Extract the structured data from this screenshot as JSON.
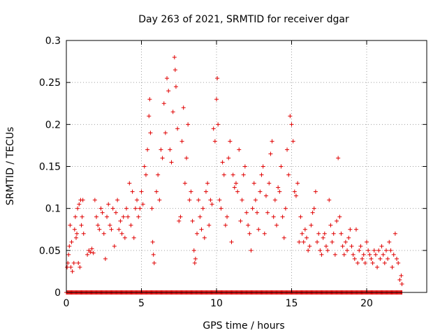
{
  "chart_data": {
    "type": "scatter",
    "title": "Day 263 of 2021, SRMTID for receiver dgar",
    "xlabel": "GPS time / hours",
    "ylabel": "SRMTID / TECUs",
    "xlim": [
      0,
      24
    ],
    "ylim": [
      0,
      0.3
    ],
    "grid": true,
    "marker": "+",
    "color": "#e00000",
    "x_ticks": [
      0,
      5,
      10,
      15,
      20
    ],
    "x_tick_labels": [
      "0",
      "5",
      "10",
      "15",
      "20"
    ],
    "y_ticks": [
      0,
      0.05,
      0.1,
      0.15,
      0.2,
      0.25,
      0.3
    ],
    "y_tick_labels": [
      "0",
      "0.05",
      "0.1",
      "0.15",
      "0.2",
      "0.25",
      "0.3"
    ],
    "series": [
      {
        "name": "SRMTID",
        "points": [
          [
            0.05,
            0.03
          ],
          [
            0.1,
            0.035
          ],
          [
            0.15,
            0.045
          ],
          [
            0.2,
            0.055
          ],
          [
            0.25,
            0.08
          ],
          [
            0.3,
            0.03
          ],
          [
            0.35,
            0.06
          ],
          [
            0.4,
            0.025
          ],
          [
            0.5,
            0.035
          ],
          [
            0.55,
            0.075
          ],
          [
            0.6,
            0.09
          ],
          [
            0.65,
            0.065
          ],
          [
            0.7,
            0.07
          ],
          [
            0.75,
            0.1
          ],
          [
            0.8,
            0.035
          ],
          [
            0.85,
            0.105
          ],
          [
            0.9,
            0.03
          ],
          [
            0.95,
            0.11
          ],
          [
            1.0,
            0.08
          ],
          [
            1.05,
            0.09
          ],
          [
            1.1,
            0.11
          ],
          [
            1.15,
            0.07
          ],
          [
            1.4,
            0.045
          ],
          [
            1.5,
            0.05
          ],
          [
            1.6,
            0.048
          ],
          [
            1.7,
            0.052
          ],
          [
            1.8,
            0.047
          ],
          [
            1.9,
            0.11
          ],
          [
            2.0,
            0.09
          ],
          [
            2.1,
            0.08
          ],
          [
            2.2,
            0.075
          ],
          [
            2.3,
            0.1
          ],
          [
            2.4,
            0.095
          ],
          [
            2.5,
            0.07
          ],
          [
            2.6,
            0.04
          ],
          [
            2.7,
            0.09
          ],
          [
            2.8,
            0.105
          ],
          [
            2.9,
            0.08
          ],
          [
            3.0,
            0.075
          ],
          [
            3.1,
            0.1
          ],
          [
            3.2,
            0.055
          ],
          [
            3.3,
            0.095
          ],
          [
            3.4,
            0.11
          ],
          [
            3.5,
            0.075
          ],
          [
            3.6,
            0.085
          ],
          [
            3.7,
            0.07
          ],
          [
            3.8,
            0.09
          ],
          [
            3.9,
            0.065
          ],
          [
            4.0,
            0.1
          ],
          [
            4.1,
            0.09
          ],
          [
            4.2,
            0.13
          ],
          [
            4.3,
            0.08
          ],
          [
            4.4,
            0.12
          ],
          [
            4.5,
            0.065
          ],
          [
            4.6,
            0.1
          ],
          [
            4.7,
            0.11
          ],
          [
            4.8,
            0.09
          ],
          [
            4.9,
            0.1
          ],
          [
            5.0,
            0.12
          ],
          [
            5.1,
            0.105
          ],
          [
            5.2,
            0.15
          ],
          [
            5.3,
            0.14
          ],
          [
            5.4,
            0.17
          ],
          [
            5.5,
            0.21
          ],
          [
            5.55,
            0.23
          ],
          [
            5.6,
            0.19
          ],
          [
            5.7,
            0.1
          ],
          [
            5.75,
            0.06
          ],
          [
            5.8,
            0.045
          ],
          [
            5.85,
            0.035
          ],
          [
            6.0,
            0.12
          ],
          [
            6.1,
            0.14
          ],
          [
            6.2,
            0.11
          ],
          [
            6.3,
            0.17
          ],
          [
            6.4,
            0.16
          ],
          [
            6.5,
            0.225
          ],
          [
            6.6,
            0.19
          ],
          [
            6.7,
            0.255
          ],
          [
            6.8,
            0.24
          ],
          [
            6.9,
            0.17
          ],
          [
            7.0,
            0.155
          ],
          [
            7.1,
            0.215
          ],
          [
            7.2,
            0.28
          ],
          [
            7.25,
            0.265
          ],
          [
            7.3,
            0.245
          ],
          [
            7.4,
            0.195
          ],
          [
            7.5,
            0.085
          ],
          [
            7.6,
            0.09
          ],
          [
            7.7,
            0.18
          ],
          [
            7.8,
            0.22
          ],
          [
            7.9,
            0.13
          ],
          [
            8.0,
            0.16
          ],
          [
            8.1,
            0.2
          ],
          [
            8.2,
            0.11
          ],
          [
            8.3,
            0.12
          ],
          [
            8.4,
            0.085
          ],
          [
            8.5,
            0.05
          ],
          [
            8.55,
            0.035
          ],
          [
            8.6,
            0.04
          ],
          [
            8.7,
            0.07
          ],
          [
            8.8,
            0.11
          ],
          [
            8.9,
            0.09
          ],
          [
            9.0,
            0.075
          ],
          [
            9.1,
            0.1
          ],
          [
            9.2,
            0.065
          ],
          [
            9.3,
            0.12
          ],
          [
            9.4,
            0.13
          ],
          [
            9.5,
            0.08
          ],
          [
            9.6,
            0.11
          ],
          [
            9.7,
            0.105
          ],
          [
            9.8,
            0.195
          ],
          [
            9.9,
            0.18
          ],
          [
            10.0,
            0.23
          ],
          [
            10.05,
            0.255
          ],
          [
            10.1,
            0.2
          ],
          [
            10.2,
            0.11
          ],
          [
            10.3,
            0.1
          ],
          [
            10.4,
            0.155
          ],
          [
            10.5,
            0.14
          ],
          [
            10.6,
            0.08
          ],
          [
            10.7,
            0.09
          ],
          [
            10.8,
            0.16
          ],
          [
            10.9,
            0.18
          ],
          [
            11.0,
            0.06
          ],
          [
            11.1,
            0.14
          ],
          [
            11.2,
            0.125
          ],
          [
            11.3,
            0.13
          ],
          [
            11.4,
            0.12
          ],
          [
            11.5,
            0.17
          ],
          [
            11.6,
            0.085
          ],
          [
            11.7,
            0.11
          ],
          [
            11.8,
            0.14
          ],
          [
            11.9,
            0.15
          ],
          [
            12.0,
            0.095
          ],
          [
            12.1,
            0.08
          ],
          [
            12.2,
            0.07
          ],
          [
            12.3,
            0.05
          ],
          [
            12.4,
            0.1
          ],
          [
            12.5,
            0.13
          ],
          [
            12.6,
            0.11
          ],
          [
            12.7,
            0.095
          ],
          [
            12.8,
            0.075
          ],
          [
            12.9,
            0.12
          ],
          [
            13.0,
            0.14
          ],
          [
            13.1,
            0.15
          ],
          [
            13.2,
            0.07
          ],
          [
            13.3,
            0.115
          ],
          [
            13.4,
            0.095
          ],
          [
            13.5,
            0.13
          ],
          [
            13.6,
            0.165
          ],
          [
            13.7,
            0.18
          ],
          [
            13.8,
            0.09
          ],
          [
            13.9,
            0.11
          ],
          [
            14.0,
            0.08
          ],
          [
            14.1,
            0.125
          ],
          [
            14.2,
            0.12
          ],
          [
            14.3,
            0.15
          ],
          [
            14.4,
            0.09
          ],
          [
            14.5,
            0.065
          ],
          [
            14.6,
            0.1
          ],
          [
            14.7,
            0.17
          ],
          [
            14.8,
            0.14
          ],
          [
            14.9,
            0.21
          ],
          [
            15.0,
            0.2
          ],
          [
            15.1,
            0.18
          ],
          [
            15.2,
            0.12
          ],
          [
            15.3,
            0.115
          ],
          [
            15.4,
            0.13
          ],
          [
            15.5,
            0.06
          ],
          [
            15.6,
            0.09
          ],
          [
            15.7,
            0.07
          ],
          [
            15.8,
            0.06
          ],
          [
            15.9,
            0.075
          ],
          [
            16.0,
            0.065
          ],
          [
            16.1,
            0.05
          ],
          [
            16.2,
            0.055
          ],
          [
            16.3,
            0.08
          ],
          [
            16.4,
            0.095
          ],
          [
            16.5,
            0.1
          ],
          [
            16.6,
            0.12
          ],
          [
            16.7,
            0.06
          ],
          [
            16.8,
            0.07
          ],
          [
            16.9,
            0.05
          ],
          [
            17.0,
            0.045
          ],
          [
            17.1,
            0.065
          ],
          [
            17.2,
            0.07
          ],
          [
            17.3,
            0.055
          ],
          [
            17.4,
            0.05
          ],
          [
            17.5,
            0.11
          ],
          [
            17.6,
            0.08
          ],
          [
            17.7,
            0.06
          ],
          [
            17.8,
            0.07
          ],
          [
            17.9,
            0.045
          ],
          [
            18.0,
            0.085
          ],
          [
            18.1,
            0.16
          ],
          [
            18.2,
            0.09
          ],
          [
            18.3,
            0.07
          ],
          [
            18.4,
            0.055
          ],
          [
            18.5,
            0.045
          ],
          [
            18.6,
            0.06
          ],
          [
            18.7,
            0.05
          ],
          [
            18.8,
            0.065
          ],
          [
            18.9,
            0.075
          ],
          [
            19.0,
            0.055
          ],
          [
            19.1,
            0.045
          ],
          [
            19.2,
            0.04
          ],
          [
            19.3,
            0.075
          ],
          [
            19.4,
            0.035
          ],
          [
            19.5,
            0.05
          ],
          [
            19.6,
            0.055
          ],
          [
            19.7,
            0.04
          ],
          [
            19.8,
            0.045
          ],
          [
            19.9,
            0.035
          ],
          [
            20.0,
            0.06
          ],
          [
            20.1,
            0.05
          ],
          [
            20.2,
            0.045
          ],
          [
            20.3,
            0.04
          ],
          [
            20.4,
            0.035
          ],
          [
            20.5,
            0.05
          ],
          [
            20.6,
            0.045
          ],
          [
            20.7,
            0.03
          ],
          [
            20.8,
            0.05
          ],
          [
            20.9,
            0.04
          ],
          [
            21.0,
            0.055
          ],
          [
            21.1,
            0.045
          ],
          [
            21.2,
            0.035
          ],
          [
            21.3,
            0.05
          ],
          [
            21.4,
            0.04
          ],
          [
            21.5,
            0.06
          ],
          [
            21.6,
            0.05
          ],
          [
            21.7,
            0.03
          ],
          [
            21.8,
            0.045
          ],
          [
            21.9,
            0.07
          ],
          [
            22.0,
            0.04
          ],
          [
            22.1,
            0.035
          ],
          [
            22.2,
            0.015
          ],
          [
            22.3,
            0.02
          ],
          [
            22.35,
            0.01
          ]
        ]
      }
    ],
    "baseline_zero_points_x_range": [
      0,
      22.4
    ]
  }
}
